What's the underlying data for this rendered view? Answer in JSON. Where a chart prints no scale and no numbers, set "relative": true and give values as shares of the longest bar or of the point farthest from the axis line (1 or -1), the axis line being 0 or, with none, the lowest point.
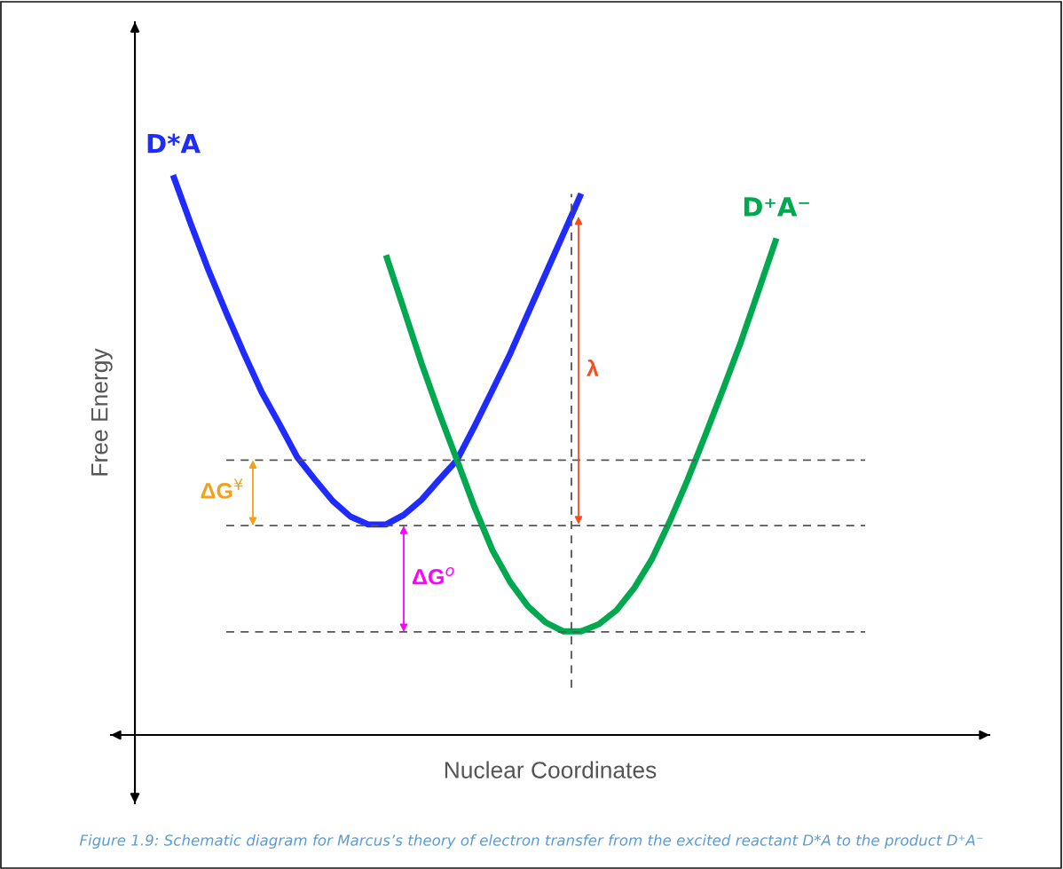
{
  "chart_data": {
    "type": "line",
    "relative": true,
    "xlabel": "Nuclear Coordinates",
    "ylabel": "Free Energy",
    "categories": [
      null,
      null,
      null,
      null,
      null,
      null,
      null,
      null,
      null,
      null,
      null,
      null,
      null,
      null,
      null,
      null,
      null,
      null,
      null,
      null,
      null,
      null,
      null,
      null,
      null,
      null,
      null,
      null,
      null,
      null,
      null,
      null,
      null,
      null,
      null
    ],
    "series": [
      {
        "name": "D*A",
        "color": "#1f2bff",
        "values": [
          1.0,
          0.913,
          0.83,
          0.754,
          0.681,
          0.612,
          0.555,
          0.496,
          0.456,
          0.418,
          0.39,
          0.376,
          0.376,
          0.393,
          0.42,
          0.456,
          0.491,
          0.552,
          0.616,
          0.681,
          0.753,
          0.824,
          0.895,
          0.967,
          null,
          null,
          null,
          null,
          null,
          null,
          null,
          null,
          null,
          null,
          null
        ]
      },
      {
        "name": "D⁺A⁻",
        "color": "#00a84f",
        "values": [
          null,
          null,
          null,
          null,
          null,
          null,
          null,
          null,
          null,
          null,
          null,
          null,
          0.857,
          0.761,
          0.664,
          0.575,
          0.491,
          0.406,
          0.33,
          0.273,
          0.23,
          0.201,
          0.185,
          0.185,
          0.198,
          0.223,
          0.263,
          0.315,
          0.382,
          0.456,
          0.536,
          0.618,
          0.702,
          0.794,
          0.887
        ]
      }
    ],
    "ref_lines": [
      {
        "axis": "y",
        "value": 0.491,
        "color": "#555555",
        "line_style": "dashed"
      },
      {
        "axis": "y",
        "value": 0.374,
        "color": "#555555",
        "line_style": "dashed"
      },
      {
        "axis": "y",
        "value": 0.184,
        "color": "#555555",
        "line_style": "dashed"
      }
    ],
    "annotations": [
      "ΔG$^{¥}$",
      "ΔG$^{o}$",
      "λ",
      "Figure 1.9: Schematic diagram for Marcus’s theory of electron transfer from the excited reactant D*A to the product D⁺A⁻"
    ]
  }
}
